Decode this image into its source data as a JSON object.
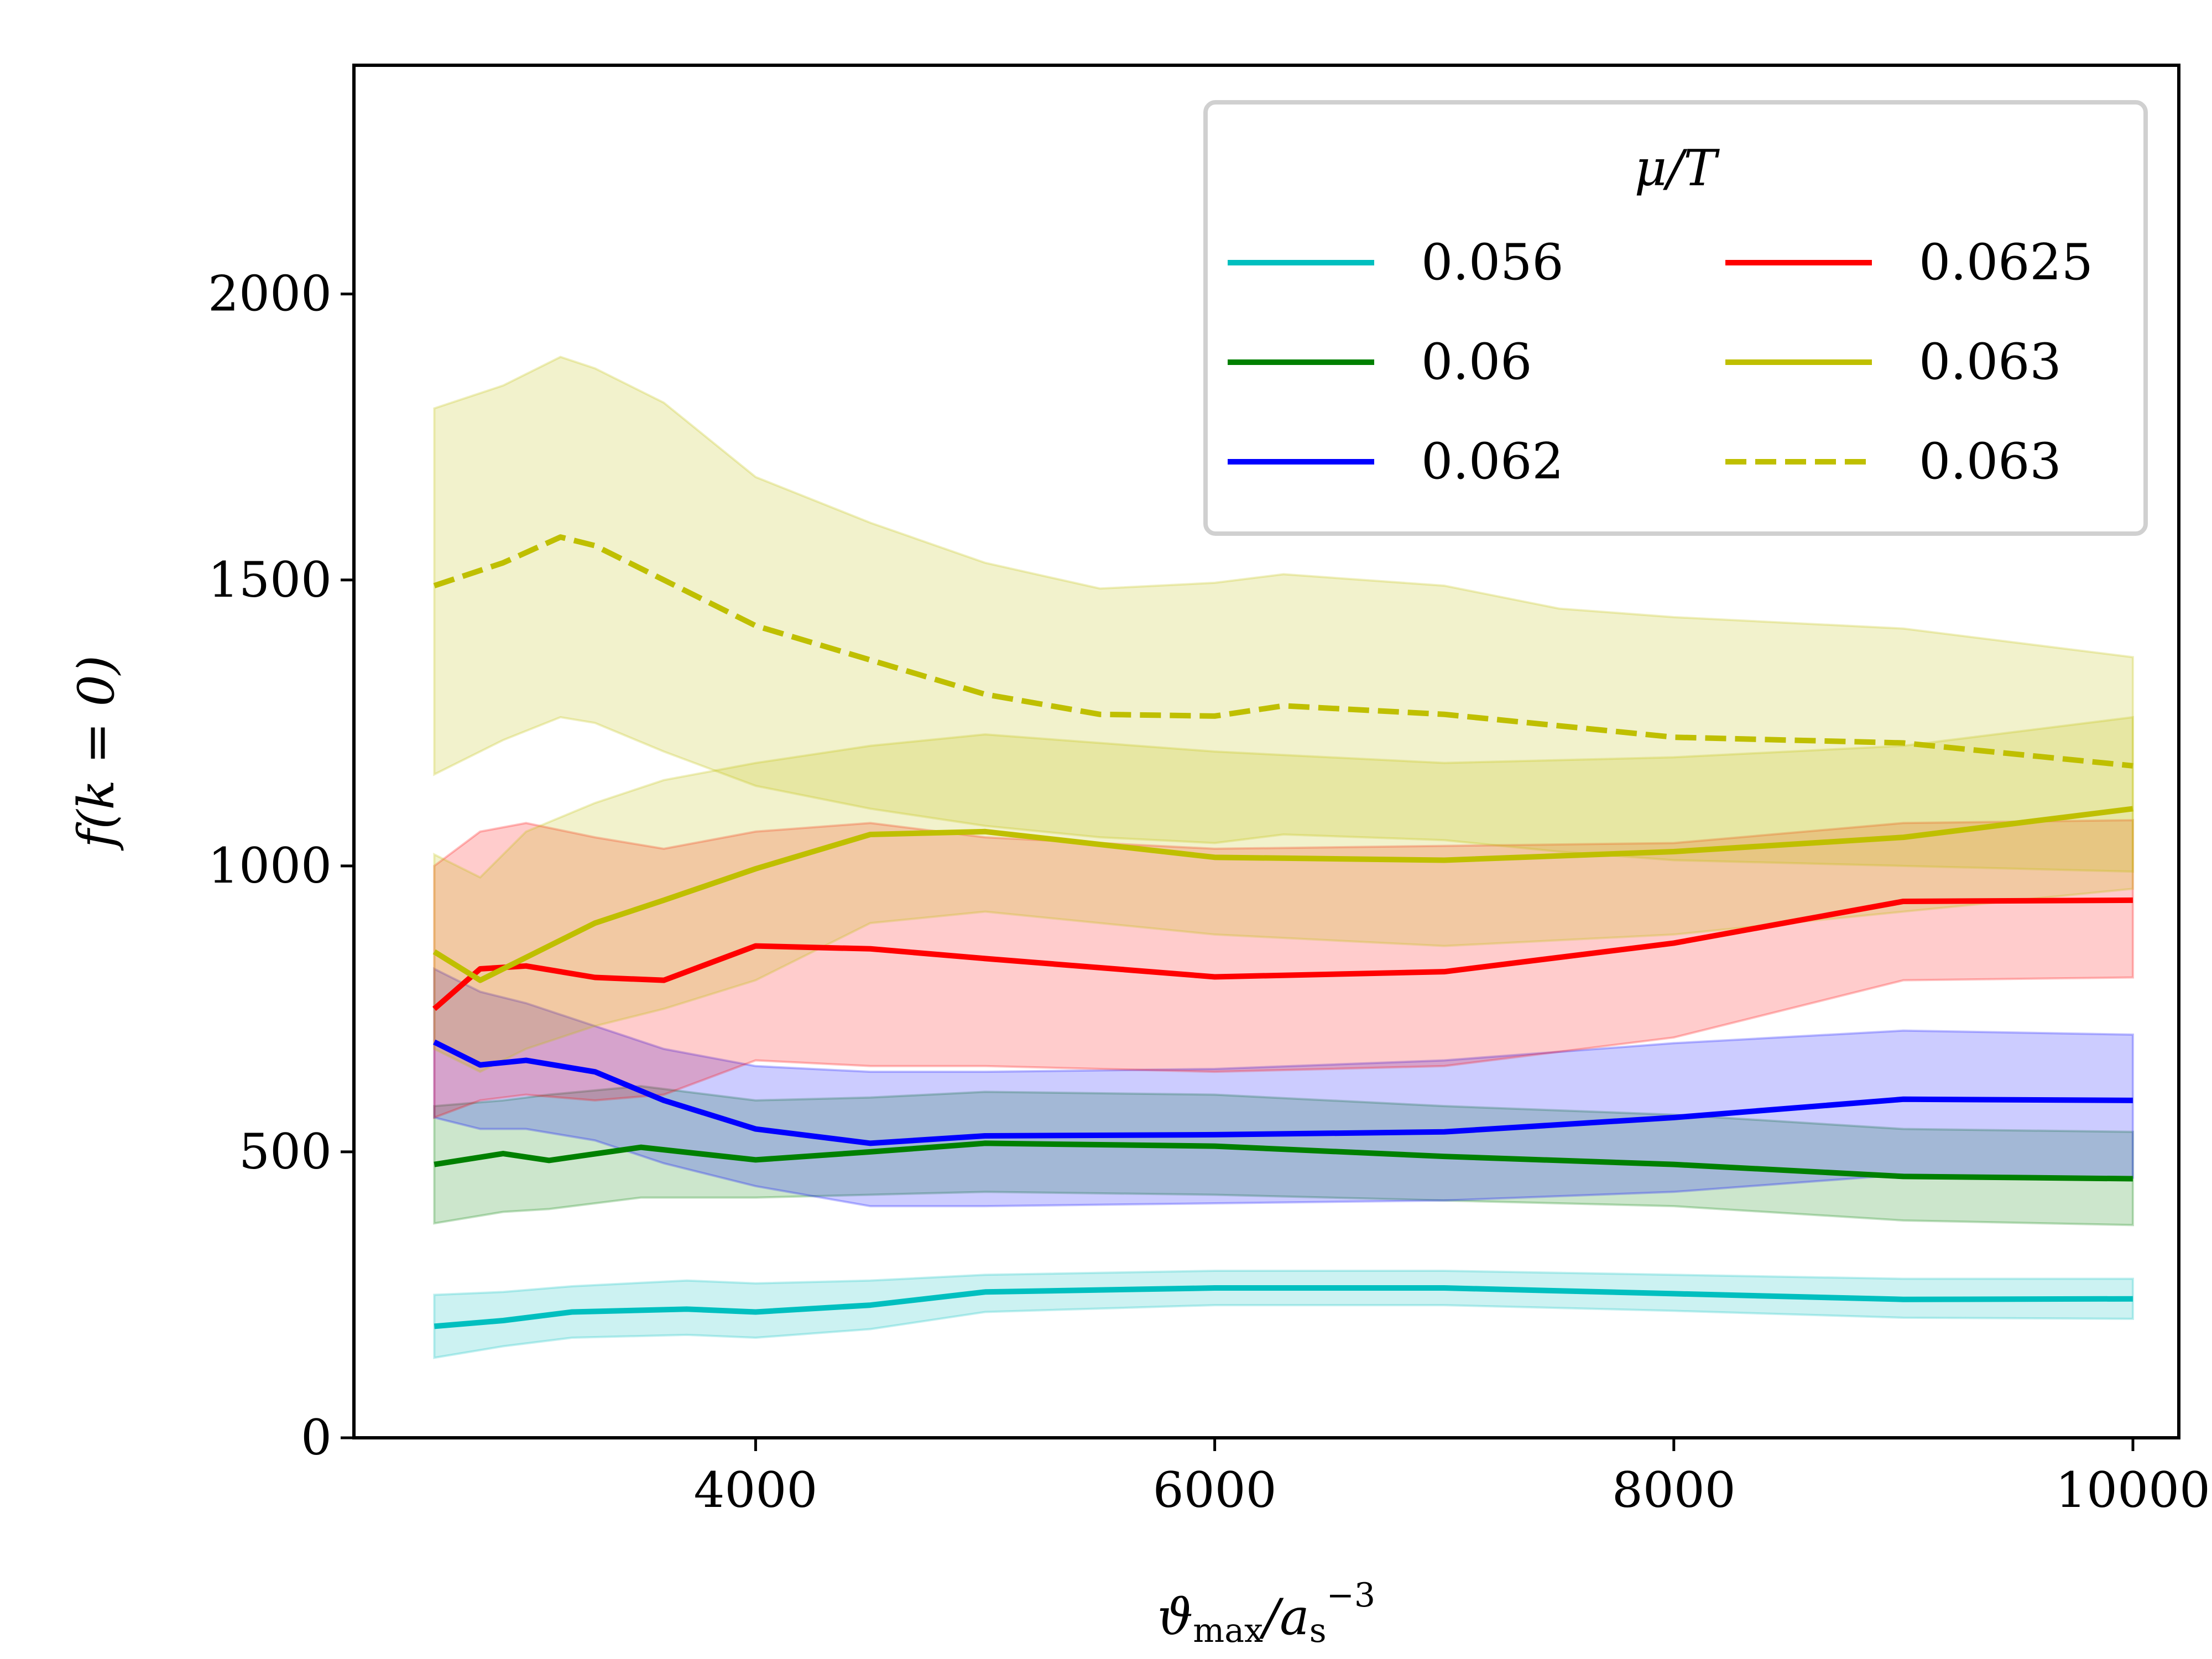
{
  "chart_data": {
    "type": "line",
    "xlabel": "ϑ_max/a_s^−3",
    "ylabel": "f(k = 0)",
    "xlim": [
      2250,
      10200
    ],
    "ylim": [
      0,
      2400
    ],
    "xticks": [
      4000,
      6000,
      8000,
      10000
    ],
    "yticks": [
      0,
      500,
      1000,
      1500,
      2000
    ],
    "grid": false,
    "legend": {
      "title": "μ/T",
      "placement": "top-right",
      "columns": 2
    },
    "series": [
      {
        "name": "0.056",
        "color": "#00bfbf",
        "style": "solid",
        "x": [
          2600,
          2900,
          3200,
          3700,
          4000,
          4500,
          5000,
          6000,
          7000,
          8000,
          9000,
          10000
        ],
        "y": [
          195,
          205,
          220,
          225,
          220,
          232,
          255,
          262,
          262,
          252,
          242,
          243
        ],
        "band_upper": [
          250,
          255,
          265,
          275,
          270,
          275,
          285,
          292,
          292,
          285,
          278,
          278
        ],
        "band_lower": [
          140,
          160,
          175,
          180,
          175,
          190,
          220,
          232,
          232,
          222,
          210,
          208
        ]
      },
      {
        "name": "0.06",
        "color": "#008000",
        "style": "solid",
        "x": [
          2600,
          2900,
          3100,
          3500,
          4000,
          4500,
          5000,
          6000,
          7000,
          8000,
          9000,
          10000
        ],
        "y": [
          478,
          497,
          485,
          508,
          486,
          500,
          515,
          510,
          492,
          478,
          457,
          453
        ],
        "band_upper": [
          580,
          590,
          600,
          615,
          590,
          595,
          605,
          600,
          580,
          565,
          540,
          535
        ],
        "band_lower": [
          375,
          395,
          400,
          420,
          420,
          425,
          430,
          425,
          415,
          405,
          380,
          372
        ]
      },
      {
        "name": "0.062",
        "color": "#0000ff",
        "style": "solid",
        "x": [
          2600,
          2800,
          3000,
          3300,
          3600,
          4000,
          4500,
          5000,
          6000,
          7000,
          8000,
          9000,
          10000
        ],
        "y": [
          692,
          652,
          660,
          640,
          590,
          540,
          515,
          528,
          530,
          535,
          560,
          592,
          590
        ],
        "band_upper": [
          820,
          780,
          760,
          720,
          680,
          650,
          640,
          640,
          645,
          660,
          690,
          712,
          705
        ],
        "band_lower": [
          560,
          540,
          540,
          520,
          480,
          440,
          405,
          405,
          410,
          415,
          430,
          460,
          455
        ]
      },
      {
        "name": "0.0625",
        "color": "#ff0000",
        "style": "solid",
        "x": [
          2600,
          2800,
          3000,
          3300,
          3600,
          4000,
          4500,
          5000,
          6000,
          7000,
          8000,
          9000,
          10000
        ],
        "y": [
          750,
          820,
          825,
          805,
          800,
          860,
          855,
          838,
          806,
          815,
          865,
          938,
          940
        ],
        "band_upper": [
          1000,
          1060,
          1075,
          1050,
          1030,
          1060,
          1075,
          1050,
          1030,
          1035,
          1040,
          1075,
          1080
        ],
        "band_lower": [
          560,
          590,
          600,
          590,
          600,
          660,
          650,
          650,
          640,
          650,
          700,
          800,
          805
        ]
      },
      {
        "name": "0.063",
        "color": "#bfbf00",
        "style": "solid",
        "x": [
          2600,
          2800,
          3000,
          3300,
          3600,
          4000,
          4500,
          5000,
          6000,
          7000,
          8000,
          9000,
          10000
        ],
        "y": [
          850,
          800,
          840,
          900,
          940,
          995,
          1055,
          1060,
          1015,
          1010,
          1025,
          1050,
          1100
        ],
        "band_upper": [
          1020,
          980,
          1060,
          1110,
          1150,
          1180,
          1210,
          1230,
          1200,
          1180,
          1190,
          1210,
          1260
        ],
        "band_lower": [
          680,
          640,
          680,
          720,
          750,
          800,
          900,
          920,
          880,
          860,
          880,
          920,
          960
        ]
      },
      {
        "name": "0.063",
        "color": "#bfbf00",
        "style": "dashed",
        "x": [
          2600,
          2900,
          3150,
          3300,
          3600,
          4000,
          4500,
          5000,
          5500,
          6000,
          6300,
          7000,
          7500,
          8000,
          9000,
          10000
        ],
        "y": [
          1490,
          1530,
          1575,
          1560,
          1500,
          1420,
          1360,
          1300,
          1265,
          1262,
          1280,
          1265,
          1245,
          1225,
          1215,
          1175
        ],
        "band_upper": [
          1800,
          1840,
          1890,
          1870,
          1810,
          1680,
          1600,
          1530,
          1485,
          1495,
          1510,
          1490,
          1450,
          1435,
          1415,
          1365
        ],
        "band_lower": [
          1160,
          1220,
          1260,
          1250,
          1200,
          1140,
          1100,
          1070,
          1050,
          1040,
          1055,
          1045,
          1025,
          1010,
          1000,
          990
        ]
      }
    ]
  }
}
